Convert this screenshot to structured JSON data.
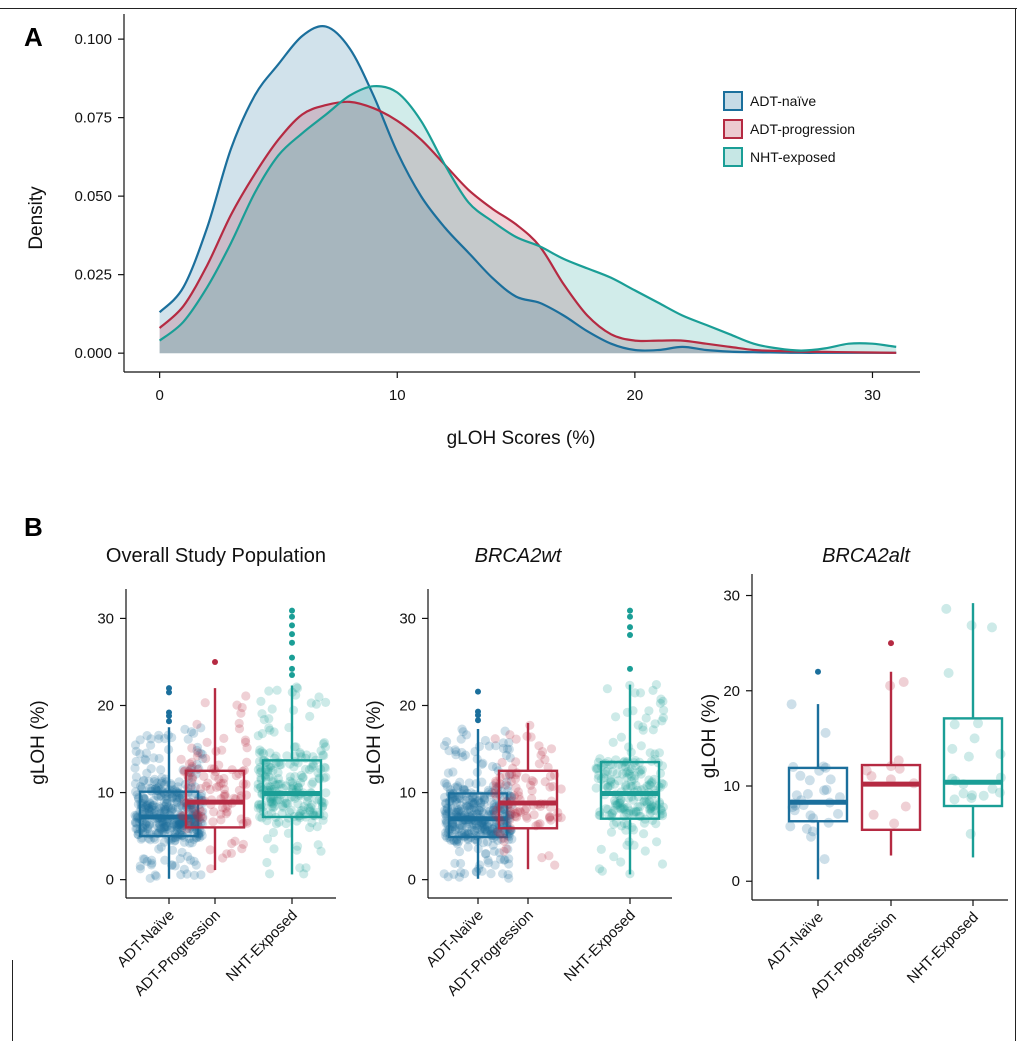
{
  "panels": {
    "a": "A",
    "b": "B"
  },
  "colors": {
    "naive": "#1b6f9c",
    "progression": "#b52a42",
    "nht": "#1a9e96"
  },
  "chart_data": [
    {
      "type": "area",
      "panel": "A",
      "title": "",
      "xlabel": "gLOH Scores (%)",
      "ylabel": "Density",
      "xlim": [
        -1.5,
        32
      ],
      "ylim": [
        -0.006,
        0.108
      ],
      "x_ticks": [
        "0",
        "10",
        "20",
        "30"
      ],
      "y_ticks": [
        "0.000",
        "0.025",
        "0.050",
        "0.075",
        "0.100"
      ],
      "legend_position": "top-right",
      "grid": false,
      "series": [
        {
          "name": "ADT-naïve",
          "color": "#1b6f9c",
          "fill": "#cfe0ec",
          "x": [
            0,
            1,
            2,
            3,
            4,
            5,
            6,
            7,
            8,
            9,
            10,
            11,
            12,
            13,
            14,
            15,
            16,
            17,
            18,
            19,
            20,
            21,
            22,
            23,
            24,
            25,
            26,
            27,
            28,
            29,
            30,
            31
          ],
          "y": [
            0.013,
            0.021,
            0.04,
            0.065,
            0.082,
            0.092,
            0.101,
            0.104,
            0.097,
            0.082,
            0.064,
            0.05,
            0.04,
            0.032,
            0.024,
            0.018,
            0.016,
            0.012,
            0.007,
            0.003,
            0.001,
            0.001,
            0.002,
            0.001,
            0.0005,
            0.0003,
            0.0002,
            0.0001,
            0.0001,
            0.0001,
            0.0001,
            0.0001
          ]
        },
        {
          "name": "ADT-progression",
          "color": "#b52a42",
          "fill": "#ecc4cc",
          "x": [
            0,
            1,
            2,
            3,
            4,
            5,
            6,
            7,
            8,
            9,
            10,
            11,
            12,
            13,
            14,
            15,
            16,
            17,
            18,
            19,
            20,
            21,
            22,
            23,
            24,
            25,
            26,
            27,
            28,
            29,
            30,
            31
          ],
          "y": [
            0.008,
            0.015,
            0.028,
            0.044,
            0.057,
            0.068,
            0.076,
            0.079,
            0.08,
            0.078,
            0.074,
            0.068,
            0.06,
            0.052,
            0.046,
            0.041,
            0.034,
            0.022,
            0.012,
            0.006,
            0.004,
            0.004,
            0.004,
            0.003,
            0.002,
            0.001,
            0.0007,
            0.0005,
            0.0004,
            0.0003,
            0.0002,
            0.0001
          ]
        },
        {
          "name": "NHT-exposed",
          "color": "#1a9e96",
          "fill": "#bfe6e3",
          "x": [
            0,
            1,
            2,
            3,
            4,
            5,
            6,
            7,
            8,
            9,
            10,
            11,
            12,
            13,
            14,
            15,
            16,
            17,
            18,
            19,
            20,
            21,
            22,
            23,
            24,
            25,
            26,
            27,
            28,
            29,
            30,
            31
          ],
          "y": [
            0.004,
            0.01,
            0.021,
            0.035,
            0.051,
            0.063,
            0.07,
            0.076,
            0.082,
            0.085,
            0.083,
            0.074,
            0.06,
            0.048,
            0.042,
            0.037,
            0.034,
            0.03,
            0.027,
            0.024,
            0.02,
            0.016,
            0.012,
            0.009,
            0.006,
            0.003,
            0.0015,
            0.0008,
            0.0015,
            0.003,
            0.003,
            0.002
          ]
        }
      ]
    },
    {
      "type": "box",
      "panel": "B",
      "title": "Overall Study Population",
      "italic_title": false,
      "ylabel": "gLOH (%)",
      "ylim": [
        -0.5,
        32
      ],
      "y_ticks": [
        0,
        10,
        20,
        30
      ],
      "categories": [
        "ADT-Naïve",
        "ADT-Progression",
        "NHT-Exposed"
      ],
      "boxes": [
        {
          "name": "ADT-Naïve",
          "color": "#1b6f9c",
          "q1": 5.0,
          "median": 7.2,
          "q3": 10.1,
          "whisker_low": 0.1,
          "whisker_high": 17.5,
          "outliers": [
            18.2,
            18.8,
            19.2,
            21.5,
            22.0
          ]
        },
        {
          "name": "ADT-Progression",
          "color": "#b52a42",
          "q1": 6.0,
          "median": 8.9,
          "q3": 12.5,
          "whisker_low": 1.1,
          "whisker_high": 22.0,
          "outliers": [
            25.0
          ]
        },
        {
          "name": "NHT-Exposed",
          "color": "#1a9e96",
          "q1": 7.2,
          "median": 9.9,
          "q3": 13.7,
          "whisker_low": 0.6,
          "whisker_high": 22.3,
          "outliers": [
            23.5,
            24.2,
            25.5,
            27.2,
            28.2,
            29.2,
            30.2,
            30.9
          ]
        }
      ],
      "jitter_counts": [
        420,
        110,
        240
      ]
    },
    {
      "type": "box",
      "panel": "B",
      "title": "BRCA2wt",
      "italic_title": true,
      "ylabel": "gLOH (%)",
      "ylim": [
        -0.5,
        32
      ],
      "y_ticks": [
        0,
        10,
        20,
        30
      ],
      "categories": [
        "ADT-Naïve",
        "ADT-Progression",
        "NHT-Exposed"
      ],
      "boxes": [
        {
          "name": "ADT-Naïve",
          "color": "#1b6f9c",
          "q1": 4.9,
          "median": 7.0,
          "q3": 9.9,
          "whisker_low": 0.1,
          "whisker_high": 17.3,
          "outliers": [
            18.3,
            18.9,
            19.3,
            21.6
          ]
        },
        {
          "name": "ADT-Progression",
          "color": "#b52a42",
          "q1": 5.9,
          "median": 8.8,
          "q3": 12.5,
          "whisker_low": 1.2,
          "whisker_high": 18.0,
          "outliers": []
        },
        {
          "name": "NHT-Exposed",
          "color": "#1a9e96",
          "q1": 7.0,
          "median": 9.9,
          "q3": 13.5,
          "whisker_low": 0.6,
          "whisker_high": 22.4,
          "outliers": [
            24.2,
            28.1,
            29.0,
            30.2,
            30.9
          ]
        }
      ],
      "jitter_counts": [
        390,
        100,
        215
      ]
    },
    {
      "type": "box",
      "panel": "B",
      "title": "BRCA2alt",
      "italic_title": true,
      "ylabel": "gLOH (%)",
      "ylim": [
        -0.5,
        31
      ],
      "y_ticks": [
        0,
        10,
        20,
        30
      ],
      "categories": [
        "ADT-Naïve",
        "ADT-Progression",
        "NHT-Exposed"
      ],
      "boxes": [
        {
          "name": "ADT-Naïve",
          "color": "#1b6f9c",
          "q1": 6.3,
          "median": 8.3,
          "q3": 11.9,
          "whisker_low": 0.2,
          "whisker_high": 18.6,
          "outliers": [
            22.0
          ]
        },
        {
          "name": "ADT-Progression",
          "color": "#b52a42",
          "q1": 5.4,
          "median": 10.2,
          "q3": 12.2,
          "whisker_low": 2.7,
          "whisker_high": 22.0,
          "outliers": [
            25.0
          ]
        },
        {
          "name": "NHT-Exposed",
          "color": "#1a9e96",
          "q1": 7.9,
          "median": 10.4,
          "q3": 17.1,
          "whisker_low": 2.5,
          "whisker_high": 29.2,
          "outliers": []
        }
      ],
      "jitter_counts": [
        30,
        12,
        22
      ]
    }
  ]
}
